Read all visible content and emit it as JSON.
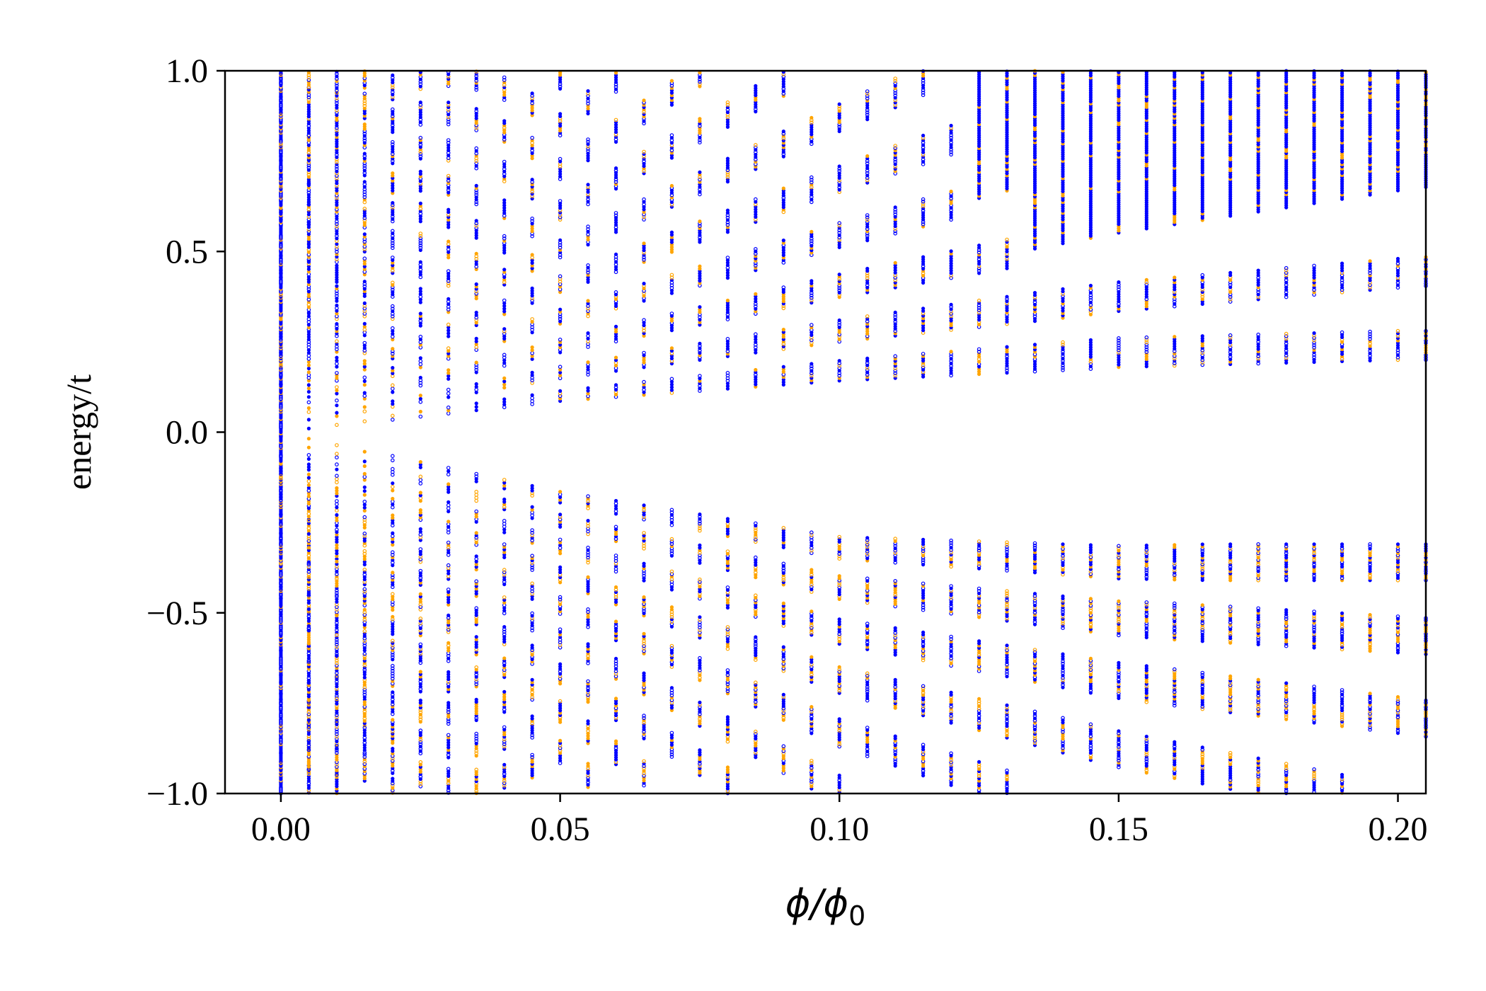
{
  "chart_data": {
    "type": "scatter",
    "title": "",
    "xlabel": "ϕ/ϕ",
    "xlabel_subscript": "0",
    "ylabel": "energy/t",
    "xlim": [
      -0.01,
      0.205
    ],
    "ylim": [
      -1.0,
      1.0
    ],
    "x_ticks": [
      0.0,
      0.05,
      0.1,
      0.15,
      0.2
    ],
    "x_tick_labels": [
      "0.00",
      "0.05",
      "0.10",
      "0.15",
      "0.20"
    ],
    "y_ticks": [
      -1.0,
      -0.5,
      0.0,
      0.5,
      1.0
    ],
    "y_tick_labels": [
      "−1.0",
      "−0.5",
      "0.0",
      "0.5",
      "1.0"
    ],
    "grid": false,
    "legend": "none",
    "x_step": 0.005,
    "x_max": 0.205,
    "series_colors": {
      "blue": "#0000ff",
      "orange": "#ffa500"
    },
    "description_of_structure": "",
    "band_edges": {
      "x": [
        0.0,
        0.05,
        0.1,
        0.15,
        0.2
      ],
      "upper_gap_edge": [
        0.0,
        0.1,
        0.17,
        0.22,
        0.24
      ],
      "lower_gap_edge": [
        0.0,
        -0.18,
        -0.32,
        -0.36,
        -0.36
      ]
    }
  }
}
